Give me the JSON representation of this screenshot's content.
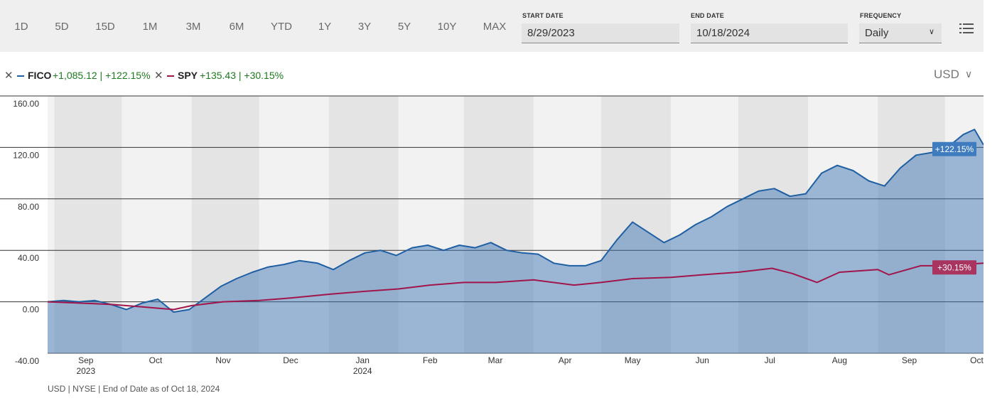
{
  "toolbar": {
    "ranges": [
      "1D",
      "5D",
      "15D",
      "1M",
      "3M",
      "6M",
      "YTD",
      "1Y",
      "3Y",
      "5Y",
      "10Y",
      "MAX"
    ],
    "start_date_label": "START DATE",
    "start_date": "8/29/2023",
    "end_date_label": "END DATE",
    "end_date": "10/18/2024",
    "frequency_label": "FREQUENCY",
    "frequency": "Daily",
    "menu_icon": "hamburger-menu-icon"
  },
  "legend": {
    "items": [
      {
        "name": "FICO",
        "value": "+1,085.12 | +122.15%",
        "color": "#1f5fa3"
      },
      {
        "name": "SPY",
        "value": "+135.43 | +30.15%",
        "color": "#a0164a"
      }
    ],
    "currency": "USD"
  },
  "footnote": "USD | NYSE | End of Date as of Oct 18, 2024",
  "chart_data": {
    "type": "area",
    "y_ticks": [
      "160.00",
      "120.00",
      "80.00",
      "40.00",
      "0.00",
      "-40.00"
    ],
    "ylim": [
      -40,
      160
    ],
    "xlim": [
      "2023-08-29",
      "2024-10-18"
    ],
    "x_tick_labels": [
      {
        "label": "Sep",
        "year": "2023"
      },
      {
        "label": "Oct"
      },
      {
        "label": "Nov"
      },
      {
        "label": "Dec"
      },
      {
        "label": "Jan",
        "year": "2024"
      },
      {
        "label": "Feb"
      },
      {
        "label": "Mar"
      },
      {
        "label": "Apr"
      },
      {
        "label": "May"
      },
      {
        "label": "Jun"
      },
      {
        "label": "Jul"
      },
      {
        "label": "Aug"
      },
      {
        "label": "Sep"
      },
      {
        "label": "Oct"
      }
    ],
    "series": [
      {
        "name": "FICO",
        "color": "#1f5fa3",
        "end_label": "+122.15%",
        "x": [
          "2023-08-29",
          "2023-09-05",
          "2023-09-12",
          "2023-09-19",
          "2023-09-26",
          "2023-10-03",
          "2023-10-10",
          "2023-10-17",
          "2023-10-24",
          "2023-10-31",
          "2023-11-07",
          "2023-11-14",
          "2023-11-21",
          "2023-11-28",
          "2023-12-05",
          "2023-12-12",
          "2023-12-19",
          "2023-12-27",
          "2024-01-03",
          "2024-01-10",
          "2024-01-17",
          "2024-01-24",
          "2024-01-31",
          "2024-02-07",
          "2024-02-14",
          "2024-02-21",
          "2024-02-28",
          "2024-03-06",
          "2024-03-13",
          "2024-03-20",
          "2024-03-27",
          "2024-04-03",
          "2024-04-10",
          "2024-04-17",
          "2024-04-24",
          "2024-05-01",
          "2024-05-08",
          "2024-05-15",
          "2024-05-22",
          "2024-05-29",
          "2024-06-05",
          "2024-06-12",
          "2024-06-19",
          "2024-06-26",
          "2024-07-03",
          "2024-07-10",
          "2024-07-17",
          "2024-07-24",
          "2024-07-31",
          "2024-08-07",
          "2024-08-14",
          "2024-08-21",
          "2024-08-28",
          "2024-09-04",
          "2024-09-11",
          "2024-09-18",
          "2024-09-25",
          "2024-10-02",
          "2024-10-09",
          "2024-10-14",
          "2024-10-18"
        ],
        "values": [
          0,
          1,
          0,
          1,
          -2,
          -6,
          -1,
          2,
          -8,
          -6,
          3,
          12,
          18,
          23,
          27,
          29,
          32,
          30,
          25,
          32,
          38,
          40,
          36,
          42,
          44,
          40,
          44,
          42,
          46,
          40,
          38,
          37,
          30,
          28,
          28,
          32,
          48,
          62,
          54,
          46,
          52,
          60,
          66,
          74,
          80,
          86,
          88,
          82,
          84,
          100,
          106,
          102,
          94,
          90,
          104,
          114,
          116,
          120,
          130,
          134,
          122
        ]
      },
      {
        "name": "SPY",
        "color": "#a0164a",
        "end_label": "+30.15%",
        "x": [
          "2023-08-29",
          "2023-09-12",
          "2023-09-26",
          "2023-10-10",
          "2023-10-24",
          "2023-11-01",
          "2023-11-15",
          "2023-12-01",
          "2023-12-15",
          "2024-01-02",
          "2024-01-16",
          "2024-02-01",
          "2024-02-15",
          "2024-03-01",
          "2024-03-15",
          "2024-04-01",
          "2024-04-19",
          "2024-05-01",
          "2024-05-15",
          "2024-06-01",
          "2024-06-15",
          "2024-07-01",
          "2024-07-16",
          "2024-07-25",
          "2024-08-05",
          "2024-08-15",
          "2024-09-01",
          "2024-09-06",
          "2024-09-20",
          "2024-10-01",
          "2024-10-18"
        ],
        "values": [
          0,
          -1,
          -2,
          -4,
          -6,
          -3,
          0,
          1,
          3,
          6,
          8,
          10,
          13,
          15,
          15,
          17,
          13,
          15,
          18,
          19,
          21,
          23,
          26,
          22,
          15,
          23,
          25,
          21,
          28,
          28,
          30
        ]
      }
    ]
  }
}
